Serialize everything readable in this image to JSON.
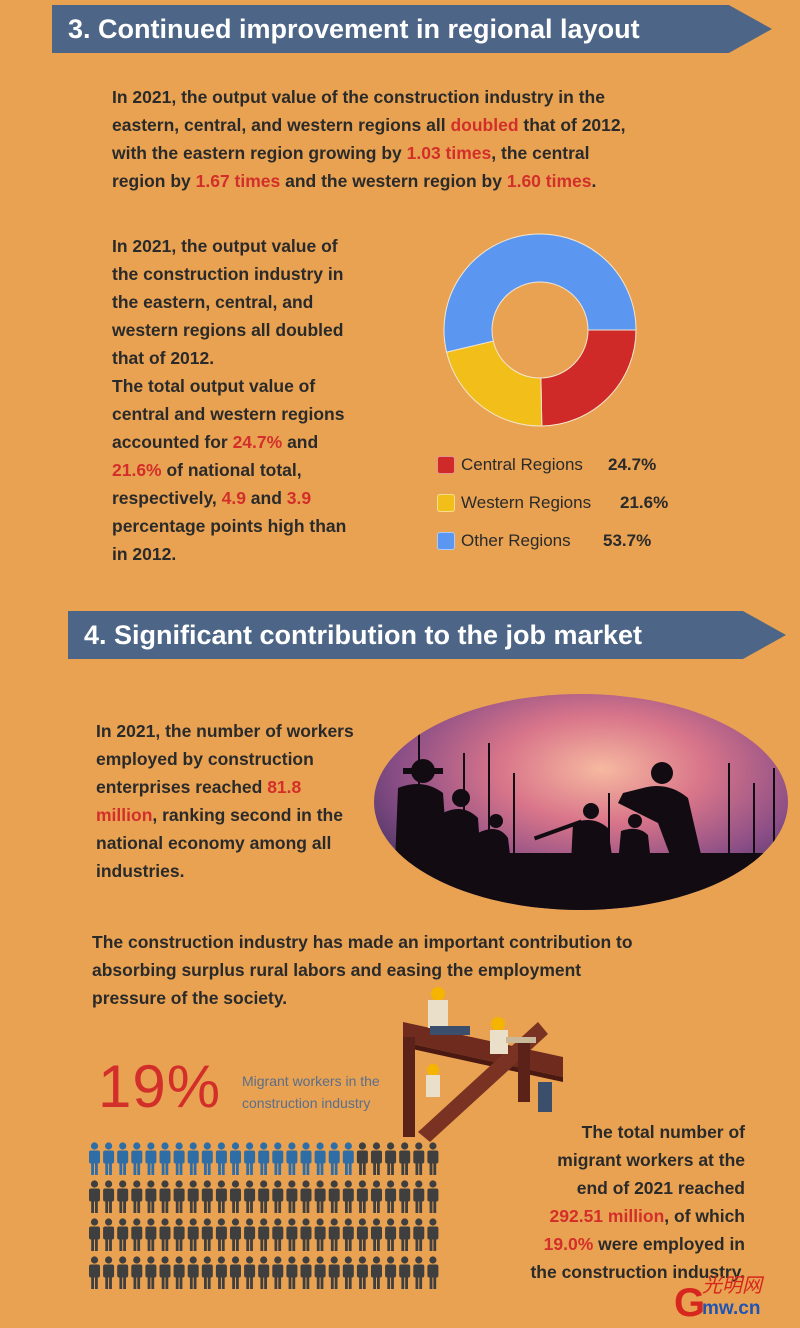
{
  "section3": {
    "title": "3. Continued improvement in regional layout",
    "para1": [
      {
        "t": "In 2021, the output value of the construction industry in the\neastern, central, and western regions all "
      },
      {
        "t": "doubled",
        "hl": true
      },
      {
        "t": " that of 2012,\nwith the eastern region growing by "
      },
      {
        "t": "1.03 times",
        "hl": true
      },
      {
        "t": ", the central\nregion by "
      },
      {
        "t": "1.67 times",
        "hl": true
      },
      {
        "t": " and the western region by "
      },
      {
        "t": "1.60 times",
        "hl": true
      },
      {
        "t": "."
      }
    ],
    "para2": [
      {
        "t": "In 2021, the output value of\nthe construction industry in\nthe eastern, central, and\nwestern regions all doubled\nthat of 2012.\nThe total output value of\ncentral and western regions\naccounted for "
      },
      {
        "t": "24.7%",
        "hl": true
      },
      {
        "t": " and\n"
      },
      {
        "t": "21.6%",
        "hl": true
      },
      {
        "t": " of national total,\nrespectively, "
      },
      {
        "t": "4.9",
        "hl": true
      },
      {
        "t": " and "
      },
      {
        "t": "3.9",
        "hl": true
      },
      {
        "t": "\npercentage points high than\nin 2012."
      }
    ]
  },
  "chart_data": [
    {
      "type": "pie",
      "donut": true,
      "legend": "bottom",
      "categories": [
        "Central Regions",
        "Western Regions",
        "Other Regions"
      ],
      "values": [
        24.7,
        21.6,
        53.7
      ],
      "labels": [
        "24.7%",
        "21.6%",
        "53.7%"
      ],
      "colors": [
        "#CF2A27",
        "#F2BF1A",
        "#5B97F0"
      ]
    },
    {
      "type": "pictogram",
      "total": 100,
      "highlighted": 19,
      "colors": {
        "highlighted": "#2F6DA6",
        "rest": "#3F3F3F"
      },
      "big_label": "19%",
      "caption": "Migrant workers in the\nconstruction industry"
    }
  ],
  "section4": {
    "title": "4. Significant contribution to the job market",
    "para3": [
      {
        "t": "In 2021, the number of workers\nemployed by construction\nenterprises reached "
      },
      {
        "t": "81.8\nmillion",
        "hl": true
      },
      {
        "t": ", ranking second in the\nnational economy among all\nindustries."
      }
    ],
    "para4": [
      {
        "t": "The construction industry has made an important contribution to\nabsorbing surplus rural labors and easing the employment\npressure of the society."
      }
    ],
    "para5": [
      {
        "t": "The total number of\nmigrant workers at the\nend of 2021 reached\n"
      },
      {
        "t": "292.51 million",
        "hl": true
      },
      {
        "t": ", of which\n"
      },
      {
        "t": "19.0%",
        "hl": true
      },
      {
        "t": " were employed in\nthe construction industry."
      }
    ]
  },
  "logo": {
    "text": "光明网 Gmw.cn"
  },
  "colors": {
    "background": "#E9A252",
    "banner": "#4D6586",
    "highlight": "#D32F2A"
  }
}
